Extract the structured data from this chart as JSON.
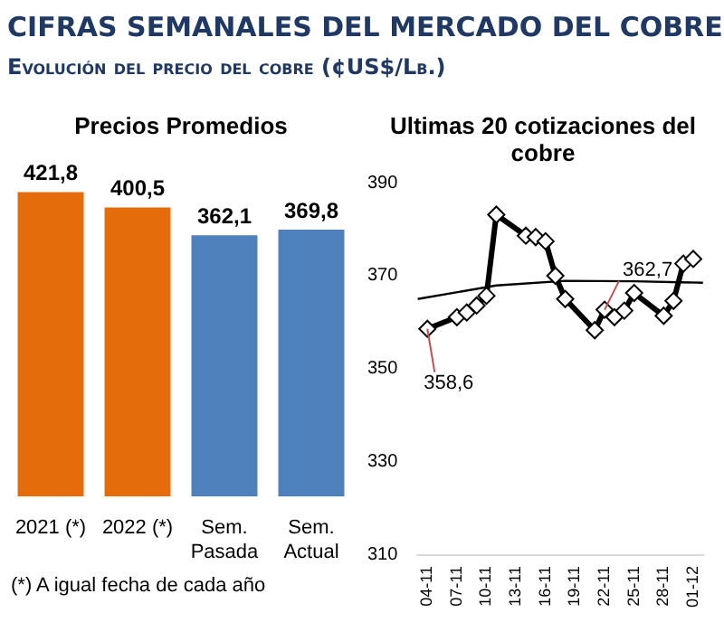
{
  "chart_data": [
    {
      "type": "bar",
      "title": "Precios Promedios",
      "categories": [
        "2021 (*)",
        "2022 (*)",
        "Sem. Pasada",
        "Sem. Actual"
      ],
      "values": [
        421.8,
        400.5,
        362.1,
        369.8
      ],
      "colors": [
        "#e46c0a",
        "#e46c0a",
        "#4f81bd",
        "#4f81bd"
      ],
      "value_labels": [
        "421,8",
        "400,5",
        "362,1",
        "369,8"
      ],
      "tick_labels": "x",
      "grid": false,
      "legend": false,
      "annotations": [
        "CIFRAS SEMANALES DEL MERCADO DEL COBRE",
        "Evolución del precio del cobre (¢US$/Lb.)",
        "(*) A igual fecha de cada año"
      ]
    },
    {
      "type": "line",
      "title": "Ultimas 20 cotizaciones del cobre",
      "grid": false,
      "legend": false,
      "ylim": [
        310,
        390
      ],
      "yticks": [
        310,
        330,
        350,
        370,
        390
      ],
      "xlim": [
        "--11-03",
        "--12-02"
      ],
      "xticks": [
        {
          "value": "--11-04",
          "label": "04-11"
        },
        {
          "value": "--11-07",
          "label": "07-11"
        },
        {
          "value": "--11-10",
          "label": "10-11"
        },
        {
          "value": "--11-13",
          "label": "13-11"
        },
        {
          "value": "--11-16",
          "label": "16-11"
        },
        {
          "value": "--11-19",
          "label": "19-11"
        },
        {
          "value": "--11-22",
          "label": "22-11"
        },
        {
          "value": "--11-25",
          "label": "25-11"
        },
        {
          "value": "--11-28",
          "label": "28-11"
        },
        {
          "value": "--12-01",
          "label": "01-12"
        }
      ],
      "series": [
        {
          "type": "line",
          "color": "#000000",
          "marker": "diamond",
          "x": [
            "--11-04",
            "--11-07",
            "--11-08",
            "--11-09",
            "--11-10",
            "--11-11",
            "--11-14",
            "--11-15",
            "--11-16",
            "--11-17",
            "--11-18",
            "--11-21",
            "--11-22",
            "--11-23",
            "--11-24",
            "--11-25",
            "--11-28",
            "--11-29",
            "--11-30",
            "--12-01"
          ],
          "values": [
            358.6,
            361.1,
            362.1,
            363.6,
            365.7,
            383.1,
            378.6,
            378.3,
            377.4,
            370.0,
            365.0,
            358.3,
            362.7,
            361.1,
            362.5,
            366.3,
            361.4,
            364.6,
            372.6,
            373.6
          ],
          "value_labels": [
            "358,6",
            null,
            null,
            null,
            null,
            null,
            null,
            null,
            null,
            null,
            null,
            null,
            "362,7",
            null,
            null,
            null,
            null,
            null,
            null,
            null
          ]
        },
        {
          "type": "line",
          "color": "#000000",
          "marker": "none",
          "x": [
            "--11-03",
            "--11-11",
            "--11-18",
            "--11-25",
            "--12-02"
          ],
          "values": [
            365,
            367.9,
            368.9,
            368.8,
            368.5
          ]
        }
      ]
    }
  ]
}
